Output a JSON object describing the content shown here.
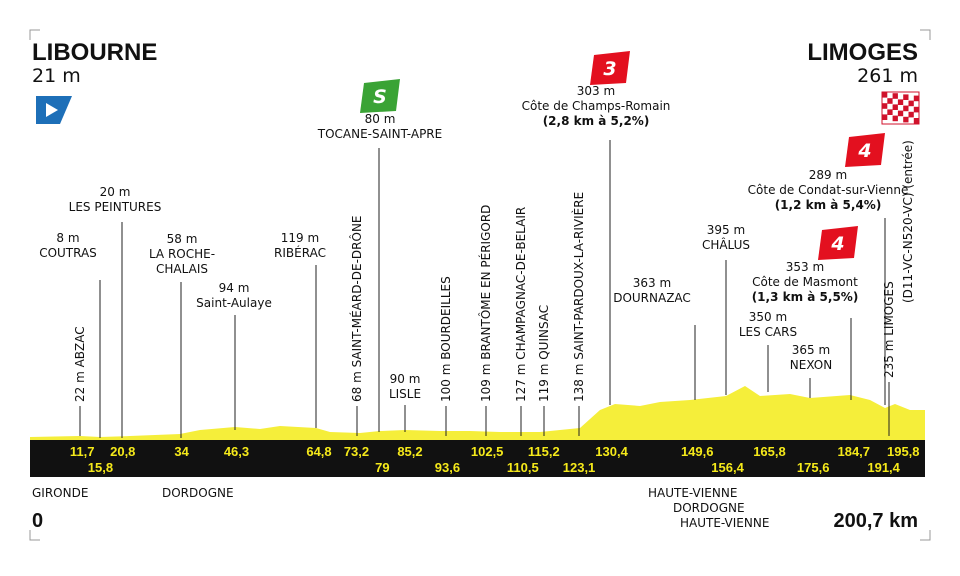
{
  "start": {
    "name": "LIBOURNE",
    "altitude": "21 m"
  },
  "finish": {
    "name": "LIMOGES",
    "altitude": "261 m"
  },
  "waypoints": [
    {
      "altitude": "8 m",
      "name": [
        "COUTRAS"
      ]
    },
    {
      "altitude": "20 m",
      "name": [
        "LES PEINTURES"
      ]
    },
    {
      "altitude": "58 m",
      "name": [
        "LA ROCHE-",
        "CHALAIS"
      ]
    },
    {
      "altitude": "94 m",
      "name": [
        "Saint-Aulaye"
      ]
    },
    {
      "altitude": "119 m",
      "name": [
        "RIBÉRAC"
      ]
    },
    {
      "altitude": "80 m",
      "name": [
        "TOCANE-SAINT-APRE"
      ],
      "category": "S"
    },
    {
      "altitude": "90 m",
      "name": [
        "LISLE"
      ]
    },
    {
      "altitude": "303 m",
      "name": [
        "Côte de Champs-Romain"
      ],
      "climb": "(2,8 km à 5,2%)",
      "category": "3"
    },
    {
      "altitude": "363 m",
      "name": [
        "DOURNAZAC"
      ]
    },
    {
      "altitude": "395 m",
      "name": [
        "CHÂLUS"
      ]
    },
    {
      "altitude": "350 m",
      "name": [
        "LES CARS"
      ]
    },
    {
      "altitude": "365 m",
      "name": [
        "NEXON"
      ]
    },
    {
      "altitude": "353 m",
      "name": [
        "Côte de Masmont"
      ],
      "climb": "(1,3 km à 5,5%)",
      "category": "4"
    },
    {
      "altitude": "289 m",
      "name": [
        "Côte de Condat-sur-Vienne"
      ],
      "climb": "(1,2 km à 5,4%)",
      "category": "4"
    }
  ],
  "vertical_waypoints": [
    [
      "22 m ABZAC"
    ],
    [
      "68 m SAINT-MÉARD-DE-DRÔNE"
    ],
    [
      "100 m BOURDEILLES"
    ],
    [
      "109 m BRANTÔME EN PÉRIGORD"
    ],
    [
      "127 m CHAMPAGNAC-DE-BELAIR"
    ],
    [
      "119 m QUINSAC"
    ],
    [
      "138 m SAINT-PARDOUX-LA-RIVIÈRE"
    ],
    [
      "235 m LIMOGES",
      "(D11-VC-N520-VC) (entrée)"
    ]
  ],
  "km_markers": [
    "11,7",
    "15,8",
    "20,8",
    "34",
    "46,3",
    "64,8",
    "73,2",
    "79",
    "85,2",
    "93,6",
    "102,5",
    "110,5",
    "115,2",
    "123,1",
    "130,4",
    "149,6",
    "156,4",
    "165,8",
    "175,6",
    "184,7",
    "191,4",
    "195,8"
  ],
  "regions": [
    "GIRONDE",
    "DORDOGNE",
    "HAUTE-VIENNE",
    "DORDOGNE",
    "HAUTE-VIENNE"
  ],
  "distance": {
    "start": "0",
    "end": "200,7 km"
  }
}
